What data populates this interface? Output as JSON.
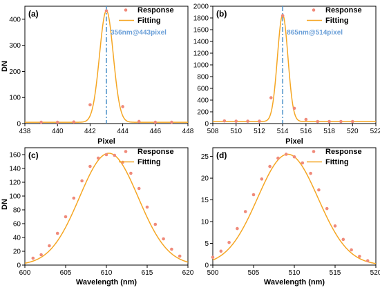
{
  "colors": {
    "response": "#f08a7a",
    "fitting": "#f5a623",
    "peak_line": "#4a90c8",
    "annotation": "#6a9fd8"
  },
  "chart_data": [
    {
      "type": "scatter",
      "panel_label": "(a)",
      "xlabel": "Pixel",
      "ylabel": "DN",
      "xlim": [
        438,
        448
      ],
      "ylim": [
        0,
        450
      ],
      "xticks": [
        438,
        440,
        442,
        444,
        446,
        448
      ],
      "yticks": [
        0,
        100,
        200,
        300,
        400
      ],
      "legend": {
        "placement": "top-right",
        "entries": [
          "Response",
          "Fitting"
        ]
      },
      "annotation": "356nm@443pixel",
      "peak_line_x": 443,
      "series": [
        {
          "name": "Response",
          "kind": "points",
          "x": [
            439,
            440,
            441,
            442,
            443,
            444,
            445,
            446,
            447
          ],
          "y": [
            5,
            5,
            6,
            72,
            432,
            65,
            8,
            5,
            5
          ]
        },
        {
          "name": "Fitting",
          "kind": "gaussian",
          "amplitude": 428,
          "center": 443,
          "sigma": 0.42,
          "offset": 5
        }
      ]
    },
    {
      "type": "scatter",
      "panel_label": "(b)",
      "xlabel": "Pixel",
      "ylabel": "",
      "xlim": [
        508,
        522
      ],
      "ylim": [
        0,
        2000
      ],
      "xticks": [
        508,
        510,
        512,
        514,
        516,
        518,
        520,
        522
      ],
      "yticks": [
        0,
        200,
        400,
        600,
        800,
        1000,
        1200,
        1400,
        1600,
        1800,
        2000
      ],
      "legend": {
        "placement": "top-right",
        "entries": [
          "Response",
          "Fitting"
        ]
      },
      "annotation": "865nm@514pixel",
      "peak_line_x": 514,
      "series": [
        {
          "name": "Response",
          "kind": "points",
          "x": [
            509,
            510,
            511,
            512,
            513,
            514,
            515,
            516,
            517,
            518,
            519,
            520
          ],
          "y": [
            45,
            40,
            40,
            40,
            440,
            1840,
            260,
            70,
            35,
            35,
            35,
            35
          ]
        },
        {
          "name": "Fitting",
          "kind": "gaussian",
          "amplitude": 1820,
          "center": 514,
          "sigma": 0.45,
          "offset": 35
        }
      ]
    },
    {
      "type": "scatter",
      "panel_label": "(c)",
      "xlabel": "Wavelength (nm)",
      "ylabel": "DN",
      "xlim": [
        600,
        620
      ],
      "ylim": [
        0,
        170
      ],
      "xticks": [
        600,
        605,
        610,
        615,
        620
      ],
      "yticks": [
        0,
        20,
        40,
        60,
        80,
        100,
        120,
        140,
        160
      ],
      "legend": {
        "placement": "top-right",
        "entries": [
          "Response",
          "Fitting"
        ]
      },
      "series": [
        {
          "name": "Response",
          "kind": "points",
          "x": [
            601,
            602,
            603,
            604,
            605,
            606,
            607,
            608,
            609,
            610,
            611,
            612,
            613,
            614,
            615,
            616,
            617,
            618,
            619
          ],
          "y": [
            10,
            15,
            28,
            46,
            70,
            97,
            122,
            143,
            155,
            160,
            159,
            149,
            133,
            111,
            84,
            59,
            38,
            23,
            13
          ]
        },
        {
          "name": "Fitting",
          "kind": "gaussian",
          "amplitude": 162,
          "center": 610.3,
          "sigma": 3.6,
          "offset": 0
        }
      ]
    },
    {
      "type": "scatter",
      "panel_label": "(d)",
      "xlabel": "Wavelength (nm)",
      "ylabel": "",
      "xlim": [
        500,
        520
      ],
      "ylim": [
        0,
        27
      ],
      "xticks": [
        500,
        505,
        510,
        515,
        520
      ],
      "yticks": [
        0,
        5,
        10,
        15,
        20,
        25
      ],
      "legend": {
        "placement": "top-right",
        "entries": [
          "Response",
          "Fitting"
        ]
      },
      "series": [
        {
          "name": "Response",
          "kind": "points",
          "x": [
            500,
            501,
            502,
            503,
            504,
            505,
            506,
            507,
            508,
            509,
            510,
            511,
            512,
            513,
            514,
            515,
            516,
            517,
            518,
            519
          ],
          "y": [
            1.8,
            3.2,
            5.2,
            8.4,
            12.3,
            16.2,
            19.8,
            22.7,
            24.6,
            25.5,
            24.9,
            23.5,
            21.1,
            17.3,
            13.0,
            9.0,
            5.9,
            3.5,
            2.0,
            1.0
          ]
        },
        {
          "name": "Fitting",
          "kind": "gaussian",
          "amplitude": 25.5,
          "center": 509.2,
          "sigma": 3.7,
          "offset": 0
        }
      ]
    }
  ]
}
